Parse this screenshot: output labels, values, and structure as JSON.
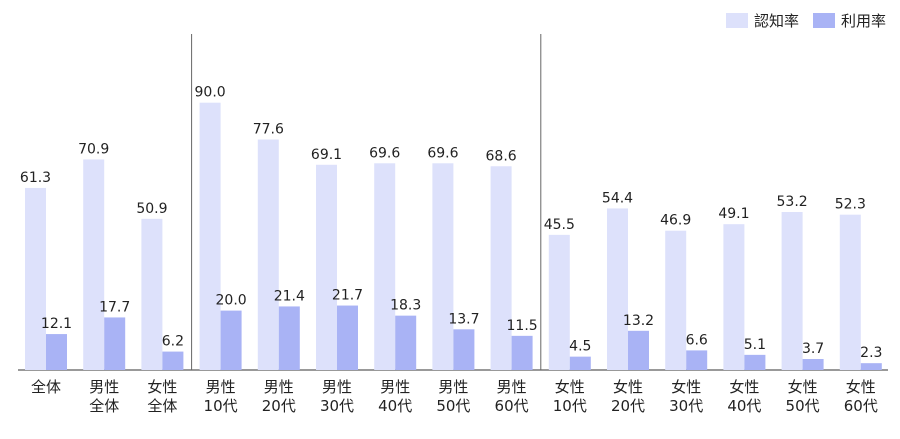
{
  "chart_data": {
    "type": "bar",
    "categories": [
      [
        "全体"
      ],
      [
        "男性",
        "全体"
      ],
      [
        "女性",
        "全体"
      ],
      [
        "男性",
        "10代"
      ],
      [
        "男性",
        "20代"
      ],
      [
        "男性",
        "30代"
      ],
      [
        "男性",
        "40代"
      ],
      [
        "男性",
        "50代"
      ],
      [
        "男性",
        "60代"
      ],
      [
        "女性",
        "10代"
      ],
      [
        "女性",
        "20代"
      ],
      [
        "女性",
        "30代"
      ],
      [
        "女性",
        "40代"
      ],
      [
        "女性",
        "50代"
      ],
      [
        "女性",
        "60代"
      ]
    ],
    "series": [
      {
        "name": "認知率",
        "color": "#dde1fb",
        "values": [
          61.3,
          70.9,
          50.9,
          90.0,
          77.6,
          69.1,
          69.6,
          69.6,
          68.6,
          45.5,
          54.4,
          46.9,
          49.1,
          53.2,
          52.3
        ]
      },
      {
        "name": "利用率",
        "color": "#a9b3f5",
        "values": [
          12.1,
          17.7,
          6.2,
          20.0,
          21.4,
          21.7,
          18.3,
          13.7,
          11.5,
          4.5,
          13.2,
          6.6,
          5.1,
          3.7,
          2.3
        ]
      }
    ],
    "ylim": [
      0,
      100
    ],
    "group_dividers_after_index": [
      2,
      8
    ],
    "legend_position": "top-right",
    "grid": false
  }
}
